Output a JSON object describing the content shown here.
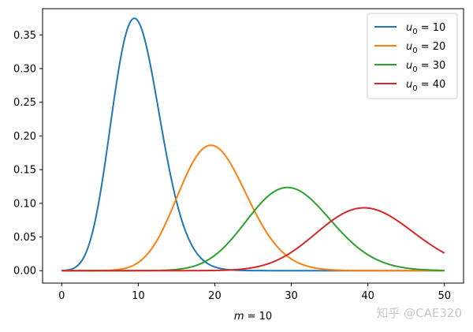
{
  "chart_data": {
    "type": "line",
    "xlabel_var": "m",
    "xlabel_eq": " = 10",
    "xlim": [
      -2.5,
      52.5
    ],
    "ylim": [
      -0.0185,
      0.389
    ],
    "xticks": [
      0,
      10,
      20,
      30,
      40,
      50
    ],
    "yticks": [
      0.0,
      0.05,
      0.1,
      0.15,
      0.2,
      0.25,
      0.3,
      0.35
    ],
    "ytick_labels": [
      "0.00",
      "0.05",
      "0.10",
      "0.15",
      "0.20",
      "0.25",
      "0.30",
      "0.35"
    ],
    "grid": false,
    "legend_position": "top-right",
    "x_range": [
      0,
      50
    ],
    "series": [
      {
        "name_var": "u",
        "name_sub": "0",
        "name_eq": " = 10",
        "color": "#1f77b4",
        "peak_x": 10,
        "peak_y": 0.37
      },
      {
        "name_var": "u",
        "name_sub": "0",
        "name_eq": " = 20",
        "color": "#ff7f0e",
        "peak_x": 20,
        "peak_y": 0.185
      },
      {
        "name_var": "u",
        "name_sub": "0",
        "name_eq": " = 30",
        "color": "#2ca02c",
        "peak_x": 30,
        "peak_y": 0.123
      },
      {
        "name_var": "u",
        "name_sub": "0",
        "name_eq": " = 40",
        "color": "#d62728",
        "peak_x": 40,
        "peak_y": 0.093
      }
    ]
  },
  "watermark": {
    "text": "知乎 @CAE320"
  }
}
